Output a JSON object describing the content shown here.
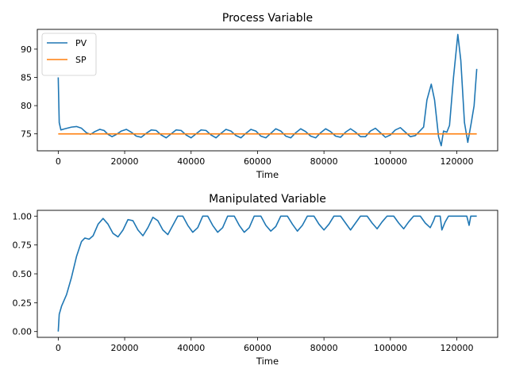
{
  "chart_data": [
    {
      "type": "line",
      "title": "Process Variable",
      "xlabel": "Time",
      "ylabel": "",
      "xlim": [
        -6300,
        132300
      ],
      "ylim": [
        72.0,
        93.5
      ],
      "xticks": [
        0,
        20000,
        40000,
        60000,
        80000,
        100000,
        120000
      ],
      "xtick_labels": [
        "0",
        "20000",
        "40000",
        "60000",
        "80000",
        "100000",
        "120000"
      ],
      "yticks": [
        75,
        80,
        85,
        90
      ],
      "ytick_labels": [
        "75",
        "80",
        "85",
        "90"
      ],
      "legend": "top-left",
      "grid": false,
      "series": [
        {
          "name": "PV",
          "color": "#1f77b4",
          "points": [
            [
              0,
              85.0
            ],
            [
              300,
              77.0
            ],
            [
              800,
              75.7
            ],
            [
              2000,
              75.9
            ],
            [
              4000,
              76.2
            ],
            [
              5500,
              76.3
            ],
            [
              7000,
              76.0
            ],
            [
              8500,
              75.2
            ],
            [
              9700,
              74.9
            ],
            [
              11000,
              75.4
            ],
            [
              12500,
              75.8
            ],
            [
              13800,
              75.6
            ],
            [
              15000,
              74.9
            ],
            [
              16200,
              74.5
            ],
            [
              17500,
              74.9
            ],
            [
              19000,
              75.5
            ],
            [
              20500,
              75.8
            ],
            [
              22000,
              75.3
            ],
            [
              23500,
              74.6
            ],
            [
              25000,
              74.4
            ],
            [
              26500,
              75.1
            ],
            [
              28000,
              75.7
            ],
            [
              29500,
              75.6
            ],
            [
              31000,
              74.8
            ],
            [
              32500,
              74.3
            ],
            [
              34000,
              75.0
            ],
            [
              35500,
              75.7
            ],
            [
              37000,
              75.6
            ],
            [
              38500,
              74.8
            ],
            [
              40000,
              74.3
            ],
            [
              41500,
              75.0
            ],
            [
              43000,
              75.7
            ],
            [
              44500,
              75.6
            ],
            [
              46000,
              74.8
            ],
            [
              47500,
              74.3
            ],
            [
              49000,
              75.1
            ],
            [
              50500,
              75.8
            ],
            [
              52000,
              75.5
            ],
            [
              53500,
              74.7
            ],
            [
              55000,
              74.3
            ],
            [
              56500,
              75.1
            ],
            [
              58000,
              75.8
            ],
            [
              59500,
              75.5
            ],
            [
              61000,
              74.6
            ],
            [
              62500,
              74.3
            ],
            [
              64000,
              75.1
            ],
            [
              65500,
              75.9
            ],
            [
              67000,
              75.5
            ],
            [
              68500,
              74.6
            ],
            [
              70000,
              74.3
            ],
            [
              71500,
              75.2
            ],
            [
              73000,
              75.9
            ],
            [
              74500,
              75.4
            ],
            [
              76000,
              74.6
            ],
            [
              77500,
              74.3
            ],
            [
              79000,
              75.2
            ],
            [
              80500,
              75.9
            ],
            [
              82000,
              75.4
            ],
            [
              83500,
              74.6
            ],
            [
              85000,
              74.4
            ],
            [
              86500,
              75.3
            ],
            [
              88000,
              75.9
            ],
            [
              89500,
              75.3
            ],
            [
              91000,
              74.5
            ],
            [
              92500,
              74.5
            ],
            [
              94000,
              75.5
            ],
            [
              95500,
              76.0
            ],
            [
              97000,
              75.2
            ],
            [
              98500,
              74.4
            ],
            [
              100000,
              74.8
            ],
            [
              101500,
              75.7
            ],
            [
              103000,
              76.1
            ],
            [
              104500,
              75.3
            ],
            [
              106000,
              74.5
            ],
            [
              107500,
              74.7
            ],
            [
              109000,
              75.6
            ],
            [
              110000,
              76.2
            ],
            [
              111000,
              81.0
            ],
            [
              112300,
              83.8
            ],
            [
              113300,
              81.0
            ],
            [
              114500,
              74.5
            ],
            [
              115300,
              72.9
            ],
            [
              116000,
              75.5
            ],
            [
              117000,
              75.3
            ],
            [
              117800,
              76.5
            ],
            [
              119000,
              85.0
            ],
            [
              120300,
              92.6
            ],
            [
              121200,
              88.0
            ],
            [
              122300,
              77.0
            ],
            [
              123300,
              73.5
            ],
            [
              124300,
              76.8
            ],
            [
              125200,
              80.0
            ],
            [
              126000,
              86.5
            ]
          ]
        },
        {
          "name": "SP",
          "color": "#ff7f0e",
          "points": [
            [
              0,
              75.0
            ],
            [
              126000,
              75.0
            ]
          ]
        }
      ]
    },
    {
      "type": "line",
      "title": "Manipulated Variable",
      "xlabel": "Time",
      "ylabel": "",
      "xlim": [
        -6300,
        132300
      ],
      "ylim": [
        -0.05,
        1.05
      ],
      "xticks": [
        0,
        20000,
        40000,
        60000,
        80000,
        100000,
        120000
      ],
      "xtick_labels": [
        "0",
        "20000",
        "40000",
        "60000",
        "80000",
        "100000",
        "120000"
      ],
      "yticks": [
        0.0,
        0.25,
        0.5,
        0.75,
        1.0
      ],
      "ytick_labels": [
        "0.00",
        "0.25",
        "0.50",
        "0.75",
        "1.00"
      ],
      "legend": "none",
      "grid": false,
      "series": [
        {
          "name": "",
          "color": "#1f77b4",
          "points": [
            [
              0,
              0.0
            ],
            [
              300,
              0.15
            ],
            [
              1000,
              0.22
            ],
            [
              2500,
              0.32
            ],
            [
              4000,
              0.47
            ],
            [
              5500,
              0.65
            ],
            [
              7000,
              0.78
            ],
            [
              8000,
              0.81
            ],
            [
              9300,
              0.8
            ],
            [
              10500,
              0.83
            ],
            [
              12000,
              0.93
            ],
            [
              13500,
              0.98
            ],
            [
              15000,
              0.93
            ],
            [
              16500,
              0.85
            ],
            [
              18000,
              0.82
            ],
            [
              19500,
              0.88
            ],
            [
              21000,
              0.97
            ],
            [
              22500,
              0.96
            ],
            [
              24000,
              0.88
            ],
            [
              25500,
              0.83
            ],
            [
              27000,
              0.9
            ],
            [
              28500,
              0.99
            ],
            [
              30000,
              0.96
            ],
            [
              31500,
              0.88
            ],
            [
              33000,
              0.84
            ],
            [
              34500,
              0.92
            ],
            [
              36000,
              1.0
            ],
            [
              37500,
              1.0
            ],
            [
              39000,
              0.92
            ],
            [
              40500,
              0.86
            ],
            [
              42000,
              0.9
            ],
            [
              43500,
              1.0
            ],
            [
              45000,
              1.0
            ],
            [
              46500,
              0.92
            ],
            [
              48000,
              0.86
            ],
            [
              49500,
              0.9
            ],
            [
              51000,
              1.0
            ],
            [
              53000,
              1.0
            ],
            [
              54500,
              0.92
            ],
            [
              56000,
              0.86
            ],
            [
              57500,
              0.9
            ],
            [
              59000,
              1.0
            ],
            [
              61000,
              1.0
            ],
            [
              62500,
              0.92
            ],
            [
              64000,
              0.87
            ],
            [
              65500,
              0.91
            ],
            [
              67000,
              1.0
            ],
            [
              69000,
              1.0
            ],
            [
              70500,
              0.93
            ],
            [
              72000,
              0.87
            ],
            [
              73500,
              0.92
            ],
            [
              75000,
              1.0
            ],
            [
              77000,
              1.0
            ],
            [
              78500,
              0.93
            ],
            [
              80000,
              0.88
            ],
            [
              81500,
              0.93
            ],
            [
              83000,
              1.0
            ],
            [
              85000,
              1.0
            ],
            [
              86500,
              0.94
            ],
            [
              88000,
              0.88
            ],
            [
              89500,
              0.94
            ],
            [
              91000,
              1.0
            ],
            [
              93000,
              1.0
            ],
            [
              94500,
              0.94
            ],
            [
              96000,
              0.89
            ],
            [
              97500,
              0.95
            ],
            [
              99000,
              1.0
            ],
            [
              101000,
              1.0
            ],
            [
              102500,
              0.94
            ],
            [
              104000,
              0.89
            ],
            [
              105500,
              0.95
            ],
            [
              107000,
              1.0
            ],
            [
              109000,
              1.0
            ],
            [
              110500,
              0.94
            ],
            [
              112000,
              0.9
            ],
            [
              113000,
              0.96
            ],
            [
              113500,
              1.0
            ],
            [
              115000,
              1.0
            ],
            [
              115500,
              0.88
            ],
            [
              116500,
              0.95
            ],
            [
              117500,
              1.0
            ],
            [
              123000,
              1.0
            ],
            [
              123700,
              0.92
            ],
            [
              124200,
              1.0
            ],
            [
              126000,
              1.0
            ]
          ]
        }
      ]
    }
  ]
}
